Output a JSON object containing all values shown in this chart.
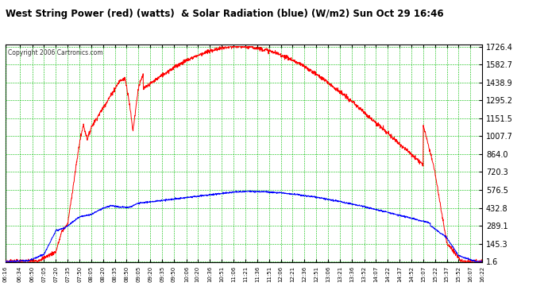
{
  "title": "West String Power (red) (watts)  & Solar Radiation (blue) (W/m2) Sun Oct 29 16:46",
  "copyright": "Copyright 2006 Cartronics.com",
  "yticks": [
    1.6,
    145.3,
    289.1,
    432.8,
    576.5,
    720.3,
    864.0,
    1007.7,
    1151.5,
    1295.2,
    1438.9,
    1582.7,
    1726.4
  ],
  "ymax": 1726.4,
  "ymin": 1.6,
  "background_color": "#ffffff",
  "plot_bg_color": "#ffffff",
  "grid_color": "#00bb00",
  "title_color": "#000000",
  "red_line_color": "#ff0000",
  "blue_line_color": "#0000ff",
  "xtick_labels": [
    "06:16",
    "06:34",
    "06:50",
    "07:05",
    "07:20",
    "07:35",
    "07:50",
    "08:05",
    "08:20",
    "08:35",
    "08:50",
    "09:05",
    "09:20",
    "09:35",
    "09:50",
    "10:06",
    "10:20",
    "10:36",
    "10:51",
    "11:06",
    "11:21",
    "11:36",
    "11:51",
    "12:06",
    "12:21",
    "12:36",
    "12:51",
    "13:06",
    "13:21",
    "13:36",
    "13:52",
    "14:07",
    "14:22",
    "14:37",
    "14:52",
    "15:07",
    "15:22",
    "15:37",
    "15:52",
    "16:07",
    "16:22"
  ]
}
